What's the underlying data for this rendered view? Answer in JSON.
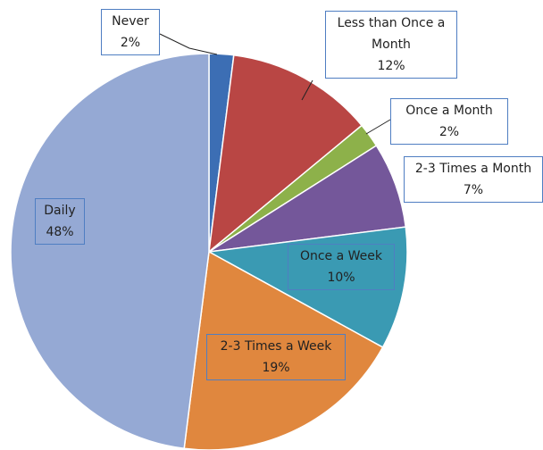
{
  "chart_data": {
    "type": "pie",
    "categories": [
      "Never",
      "Less than Once a Month",
      "Once a Month",
      "2-3 Times a Month",
      "Once a Week",
      "2-3 Times a Week",
      "Daily"
    ],
    "values": [
      2,
      12,
      2,
      7,
      10,
      19,
      48
    ],
    "value_labels": [
      "2%",
      "12%",
      "2%",
      "7%",
      "10%",
      "19%",
      "48%"
    ],
    "colors": [
      "#3c6eb4",
      "#b94644",
      "#8db14a",
      "#74579a",
      "#3a9ab3",
      "#e0873e",
      "#95a9d4"
    ]
  }
}
